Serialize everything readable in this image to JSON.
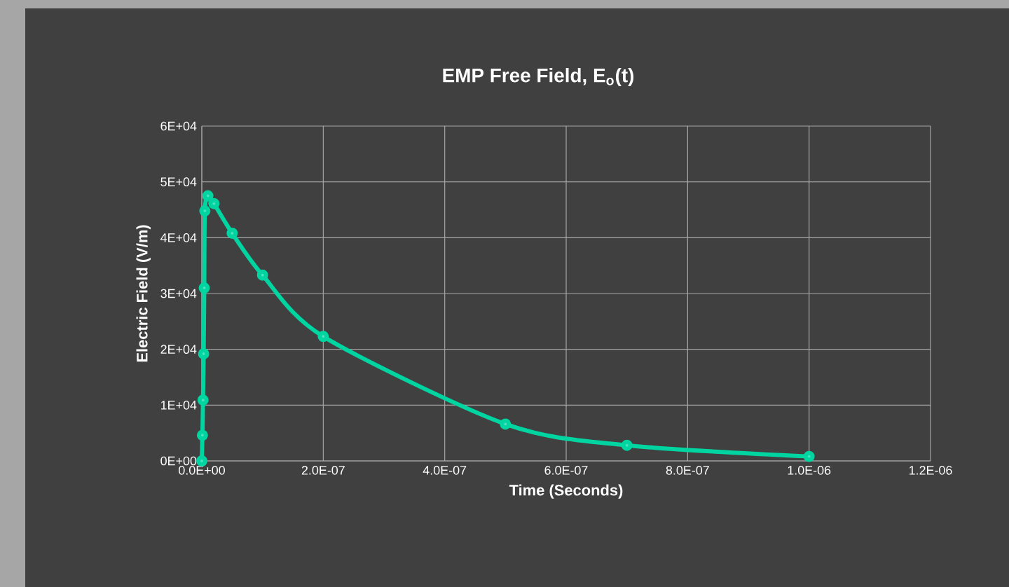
{
  "chart_data": {
    "type": "line",
    "title": "EMP Free Field, E$_{o}$(t)",
    "xlabel": "Time (Seconds)",
    "ylabel": "Electric Field (V/m)",
    "x": [
      0,
      1e-09,
      2e-09,
      3e-09,
      4e-09,
      5e-09,
      1e-08,
      2e-08,
      5e-08,
      1e-07,
      2e-07,
      5e-07,
      7e-07,
      1e-06
    ],
    "series": [
      {
        "color": "#00d4a0",
        "values": [
          0,
          4600,
          10900,
          19200,
          31000,
          44800,
          47500,
          46100,
          40800,
          33300,
          22300,
          6600,
          2800,
          800
        ]
      }
    ],
    "xlim": [
      0,
      1.2e-06
    ],
    "ylim": [
      0,
      60000
    ],
    "xticks": [
      {
        "value": 0,
        "label": "0.0E+00"
      },
      {
        "value": 2e-07,
        "label": "2.0E-07"
      },
      {
        "value": 4e-07,
        "label": "4.0E-07"
      },
      {
        "value": 6e-07,
        "label": "6.0E-07"
      },
      {
        "value": 8e-07,
        "label": "8.0E-07"
      },
      {
        "value": 1e-06,
        "label": "1.0E-06"
      },
      {
        "value": 1.2e-06,
        "label": "1.2E-06"
      }
    ],
    "yticks": [
      {
        "value": 0,
        "label": "0E+00"
      },
      {
        "value": 10000,
        "label": "1E+04"
      },
      {
        "value": 20000,
        "label": "2E+04"
      },
      {
        "value": 30000,
        "label": "3E+04"
      },
      {
        "value": 40000,
        "label": "4E+04"
      },
      {
        "value": 50000,
        "label": "5E+04"
      },
      {
        "value": 60000,
        "label": "6E+04"
      }
    ],
    "grid": true,
    "marker": "circle",
    "line_style": "solid"
  }
}
